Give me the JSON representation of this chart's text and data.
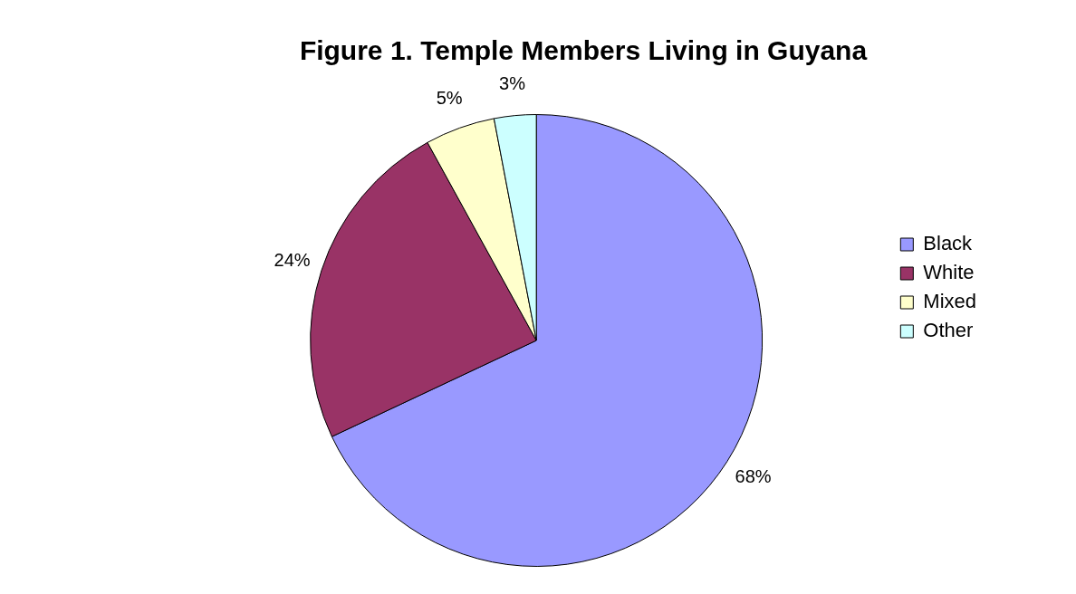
{
  "chart_data": {
    "type": "pie",
    "title": "Figure 1. Temple Members Living in Guyana",
    "categories": [
      "Black",
      "White",
      "Mixed",
      "Other"
    ],
    "values": [
      68,
      24,
      5,
      3
    ],
    "colors": [
      "#9999ff",
      "#993366",
      "#ffffcc",
      "#ccffff"
    ],
    "value_labels": [
      "68%",
      "24%",
      "5%",
      "3%"
    ],
    "legend": "right"
  }
}
